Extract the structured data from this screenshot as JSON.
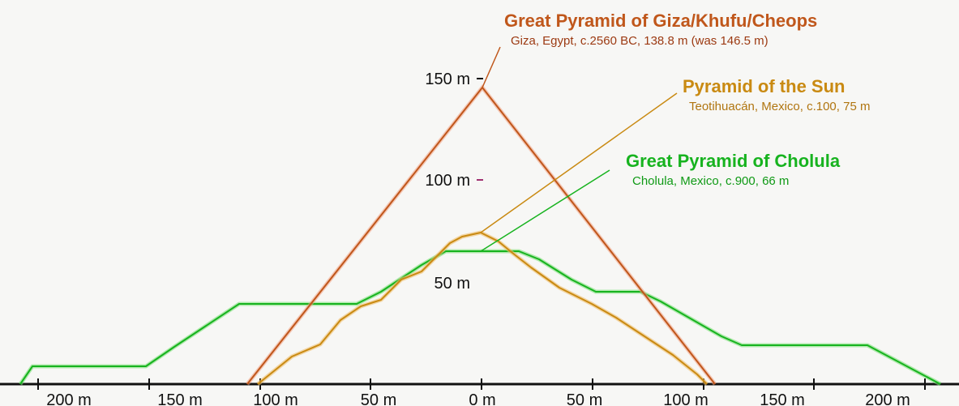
{
  "diagram": {
    "colors": {
      "giza": "#c0571b",
      "sun": "#c98a12",
      "cholula": "#17b31f",
      "axis": "#111111",
      "background": "#f7f7f5"
    },
    "pyramids": [
      {
        "id": "giza",
        "name": "Great Pyramid of Giza/Khufu/Cheops",
        "details": "Giza, Egypt, c.2560 BC, 138.8 m (was 146.5 m)"
      },
      {
        "id": "sun",
        "name": "Pyramid of the Sun",
        "details": "Teotihuacán, Mexico, c.100, 75 m"
      },
      {
        "id": "cholula",
        "name": "Great Pyramid of Cholula",
        "details": "Cholula, Mexico, c.900, 66 m"
      }
    ],
    "height_labels": [
      "150 m",
      "100 m",
      "50 m"
    ],
    "x_axis_labels": [
      "200 m",
      "150 m",
      "100 m",
      "50 m",
      "0 m",
      "50 m",
      "100 m",
      "150 m",
      "200 m"
    ]
  }
}
